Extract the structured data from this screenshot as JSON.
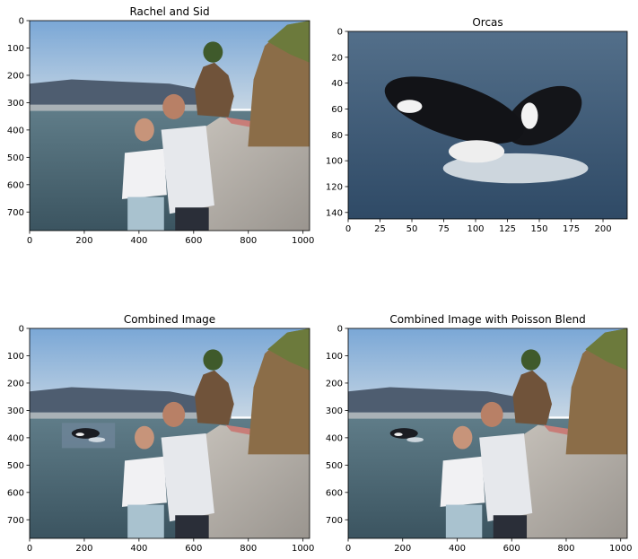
{
  "figure": {
    "layout": "2x2 grid of image panels with axes",
    "background": "#ffffff"
  },
  "chart_data": [
    {
      "type": "image",
      "title": "Rachel and Sid",
      "xlim": [
        0,
        1024
      ],
      "ylim": [
        768,
        0
      ],
      "xticks": [
        0,
        200,
        400,
        600,
        800,
        1000
      ],
      "yticks": [
        0,
        100,
        200,
        300,
        400,
        500,
        600,
        700
      ],
      "content": "photo",
      "orca_overlay": "none"
    },
    {
      "type": "image",
      "title": "Orcas",
      "xlim": [
        0,
        219
      ],
      "ylim": [
        145,
        0
      ],
      "xticks": [
        0,
        25,
        50,
        75,
        100,
        125,
        150,
        175,
        200
      ],
      "yticks": [
        0,
        20,
        40,
        60,
        80,
        100,
        120,
        140
      ],
      "content": "orcas",
      "orca_overlay": "none"
    },
    {
      "type": "image",
      "title": "Combined Image",
      "xlim": [
        0,
        1024
      ],
      "ylim": [
        768,
        0
      ],
      "xticks": [
        0,
        200,
        400,
        600,
        800,
        1000
      ],
      "yticks": [
        0,
        100,
        200,
        300,
        400,
        500,
        600,
        700
      ],
      "content": "photo",
      "orca_overlay": "patch"
    },
    {
      "type": "image",
      "title": "Combined Image with Poisson Blend",
      "xlim": [
        0,
        1024
      ],
      "ylim": [
        768,
        0
      ],
      "xticks": [
        0,
        200,
        400,
        600,
        800,
        1000
      ],
      "yticks": [
        0,
        100,
        200,
        300,
        400,
        500,
        600,
        700
      ],
      "content": "photo",
      "orca_overlay": "blended"
    }
  ]
}
